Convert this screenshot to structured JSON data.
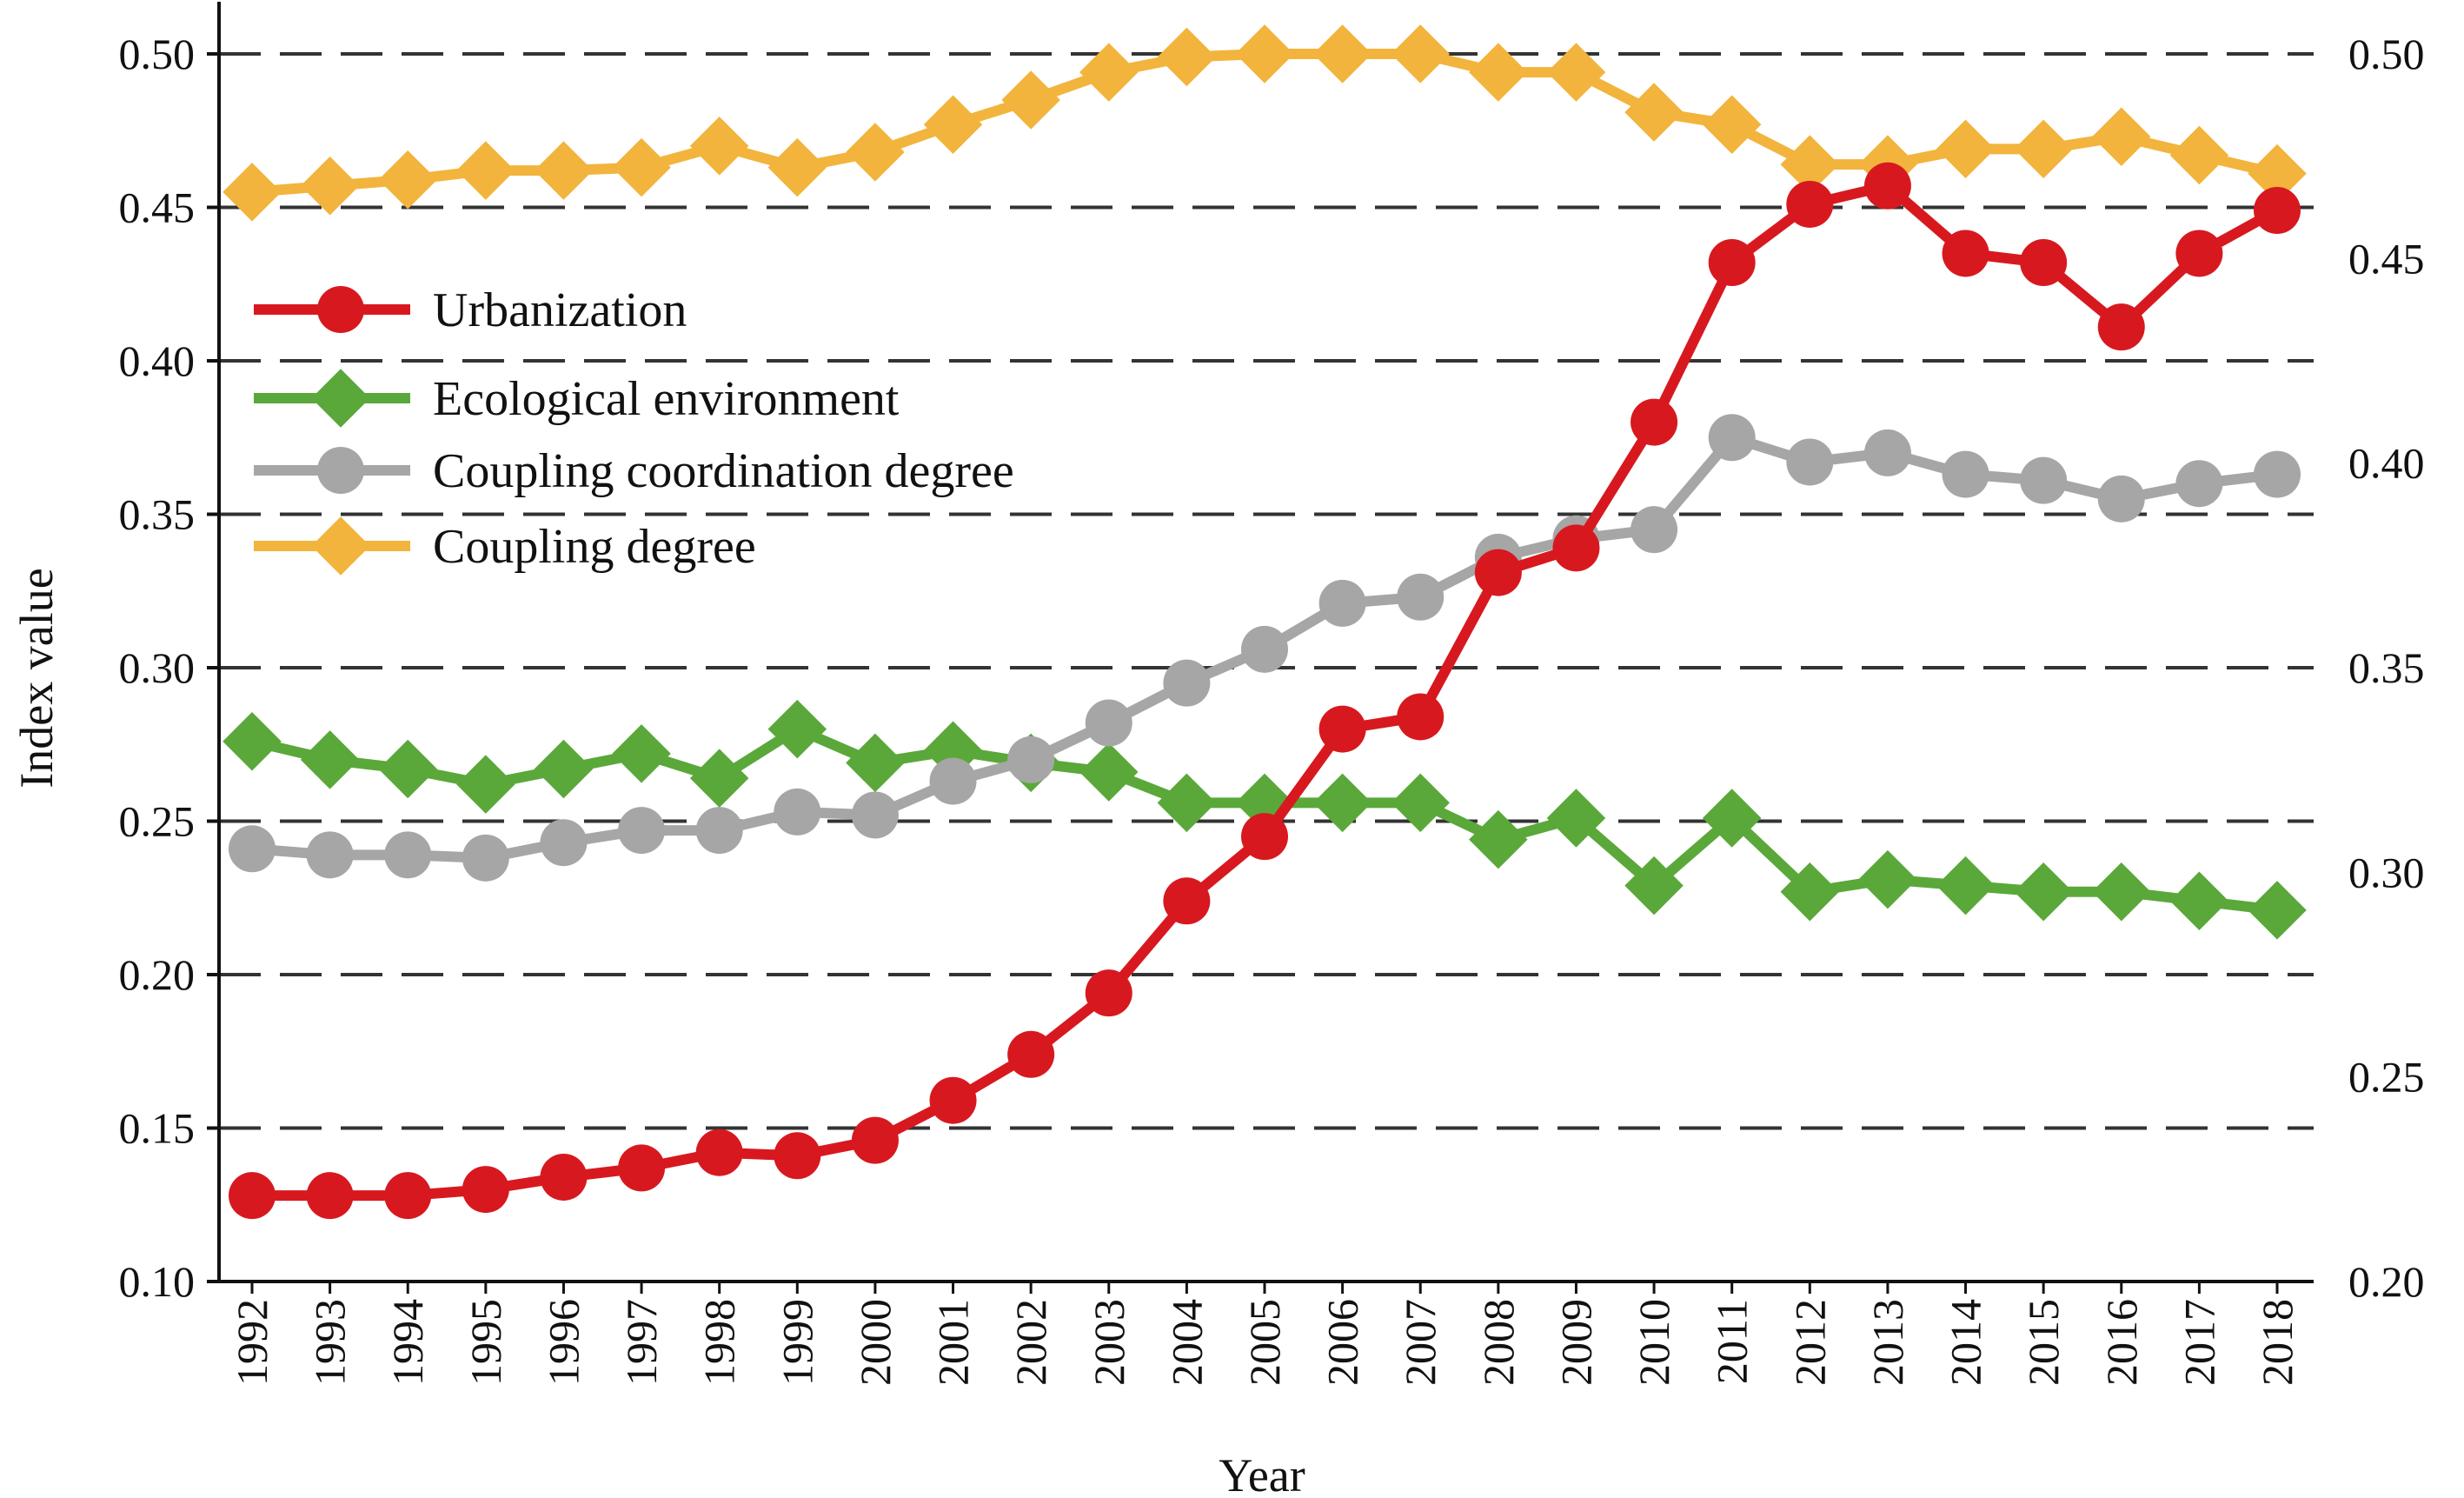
{
  "chart_data": {
    "type": "line",
    "xlabel": "Year",
    "ylabel": "Index value",
    "categories": [
      "1992",
      "1993",
      "1994",
      "1995",
      "1996",
      "1997",
      "1998",
      "1999",
      "2000",
      "2001",
      "2002",
      "2003",
      "2004",
      "2005",
      "2006",
      "2007",
      "2008",
      "2009",
      "2010",
      "2011",
      "2012",
      "2013",
      "2014",
      "2015",
      "2016",
      "2017",
      "2018"
    ],
    "y_left": {
      "min": 0.1,
      "max": 0.5,
      "ticks": [
        "0.10",
        "0.15",
        "0.20",
        "0.25",
        "0.30",
        "0.35",
        "0.40",
        "0.45",
        "0.50"
      ]
    },
    "y_right": {
      "min": 0.2,
      "max": 0.5,
      "ticks": [
        "0.20",
        "0.25",
        "0.30",
        "0.35",
        "0.40",
        "0.45",
        "0.50"
      ]
    },
    "grid": {
      "horizontal": true,
      "style": "dashed",
      "color": "#333333"
    },
    "legend": {
      "position": "upper-left inside plot"
    },
    "series": [
      {
        "name": "Urbanization",
        "axis": "left",
        "color": "#d7191f",
        "marker": "circle",
        "values": [
          0.128,
          0.128,
          0.128,
          0.13,
          0.134,
          0.137,
          0.142,
          0.141,
          0.146,
          0.159,
          0.174,
          0.194,
          0.224,
          0.245,
          0.28,
          0.284,
          0.331,
          0.339,
          0.38,
          0.432,
          0.451,
          0.457,
          0.435,
          0.432,
          0.411,
          0.435,
          0.449
        ]
      },
      {
        "name": "Ecological environment",
        "axis": "left",
        "color": "#5aa83a",
        "marker": "diamond",
        "values": [
          0.276,
          0.27,
          0.267,
          0.262,
          0.267,
          0.272,
          0.264,
          0.28,
          0.269,
          0.273,
          0.269,
          0.266,
          0.256,
          0.256,
          0.256,
          0.256,
          0.244,
          0.251,
          0.229,
          0.251,
          0.227,
          0.231,
          0.229,
          0.227,
          0.227,
          0.224,
          0.221
        ]
      },
      {
        "name": "Coupling coordination degree",
        "axis": "left",
        "color": "#a6a6a6",
        "marker": "circle",
        "values": [
          0.241,
          0.239,
          0.239,
          0.238,
          0.243,
          0.247,
          0.247,
          0.253,
          0.252,
          0.263,
          0.27,
          0.282,
          0.295,
          0.306,
          0.321,
          0.323,
          0.336,
          0.342,
          0.345,
          0.375,
          0.367,
          0.37,
          0.363,
          0.361,
          0.355,
          0.36,
          0.363
        ]
      },
      {
        "name": "Coupling degree",
        "axis": "left",
        "color": "#f2b43c",
        "marker": "diamond",
        "values": [
          0.455,
          0.457,
          0.459,
          0.462,
          0.462,
          0.463,
          0.47,
          0.463,
          0.468,
          0.477,
          0.485,
          0.494,
          0.499,
          0.5,
          0.5,
          0.5,
          0.494,
          0.494,
          0.481,
          0.477,
          0.464,
          0.464,
          0.469,
          0.469,
          0.473,
          0.467,
          0.461
        ]
      }
    ]
  }
}
